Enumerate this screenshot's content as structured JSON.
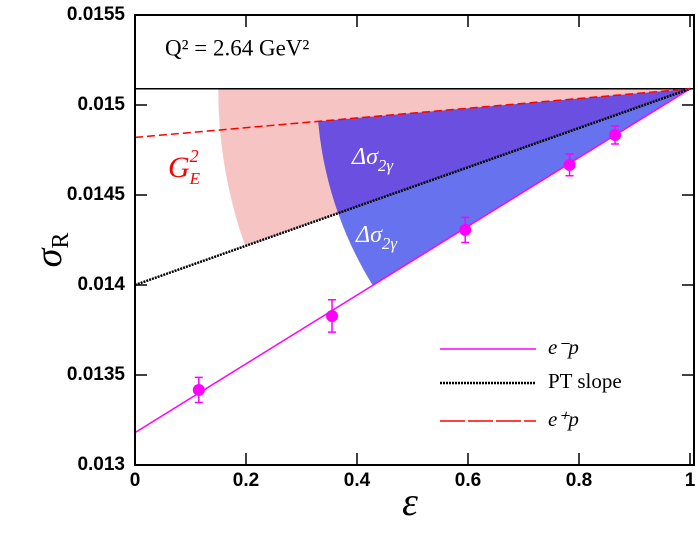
{
  "chart_data": {
    "type": "line",
    "annotation": "Q² = 2.64 GeV²",
    "xlabel": "ε",
    "ylabel": {
      "main": "σ",
      "sub": "R"
    },
    "xlim": [
      0,
      1
    ],
    "ylim": [
      0.013,
      0.0155
    ],
    "xticks": [
      0,
      0.2,
      0.4,
      0.6,
      0.8,
      1
    ],
    "yticks": [
      0.013,
      0.0135,
      0.014,
      0.0145,
      0.015,
      0.0155
    ],
    "hline": 0.01509,
    "line_x": [
      0,
      1
    ],
    "series": [
      {
        "name": "e⁻p",
        "color": "#ff00ff",
        "style": "solid",
        "values": [
          0.01318,
          0.01509
        ]
      },
      {
        "name": "PT slope",
        "color": "#000000",
        "style": "dotted",
        "values": [
          0.014,
          0.01509
        ]
      },
      {
        "name": "e⁺p",
        "color": "#ff0000",
        "style": "dashed",
        "values": [
          0.01482,
          0.01509
        ]
      }
    ],
    "points": {
      "color": "#ff00ff",
      "x": [
        0.115,
        0.355,
        0.595,
        0.783,
        0.865
      ],
      "values": [
        0.013417,
        0.013828,
        0.014306,
        0.014667,
        0.014833
      ],
      "errors": [
        7e-05,
        9e-05,
        7e-05,
        6e-05,
        5e-05
      ]
    },
    "bands": [
      {
        "color": "#f7c4c4",
        "upper": "hline",
        "lower": 1,
        "x_start": 0.15,
        "label": {
          "main": "G",
          "sup": "2",
          "sub": "E"
        },
        "label_color": "#ff0000"
      },
      {
        "color": "#6a4fe0",
        "upper": 2,
        "lower": 1,
        "x_start": 0.33,
        "label": {
          "main": "Δσ",
          "sub": "2γ"
        },
        "label_color": "#ffffff"
      },
      {
        "color": "#6672ee",
        "upper": 1,
        "lower": 0,
        "x_start": 0.366,
        "label": {
          "main": "Δσ",
          "sub": "2γ"
        },
        "label_color": "#ffffff"
      }
    ]
  }
}
